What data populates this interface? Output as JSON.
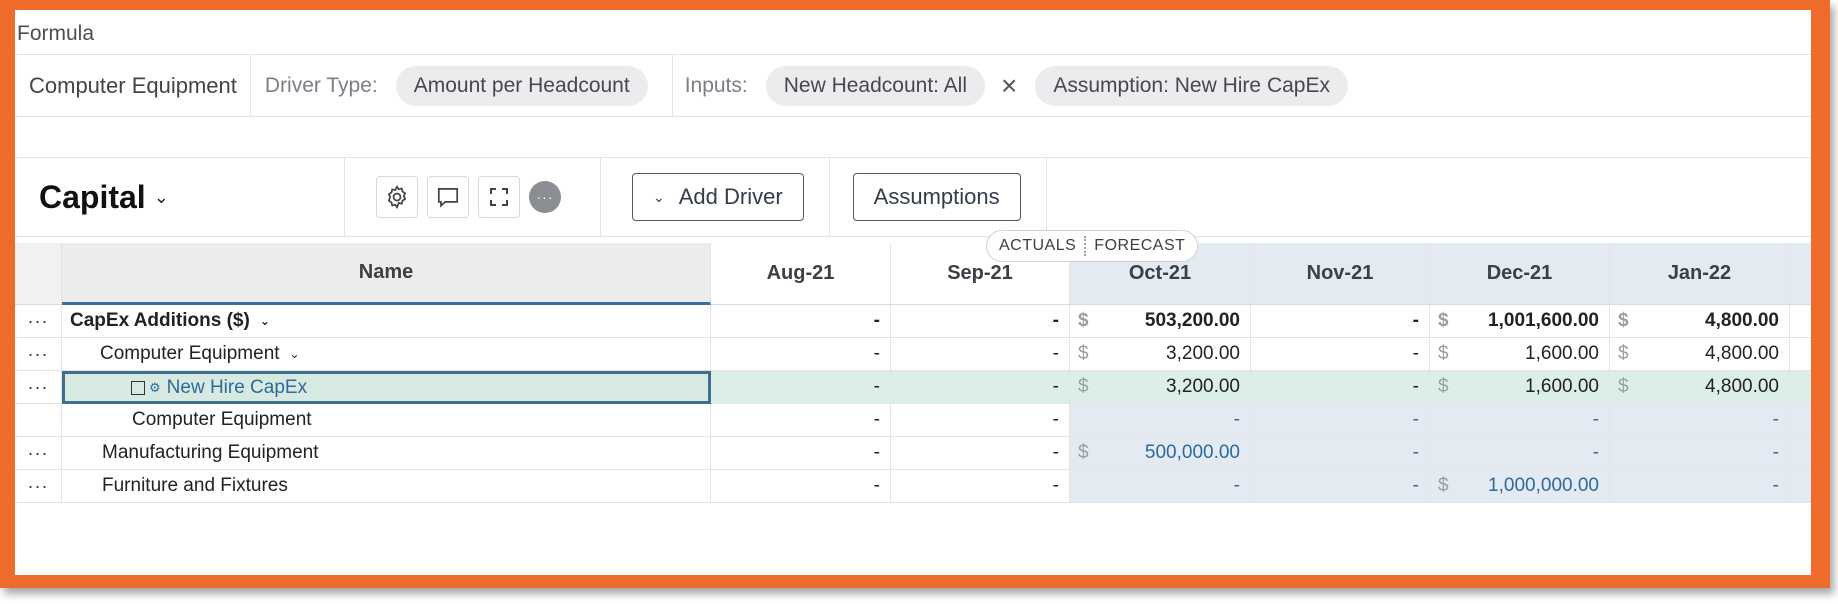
{
  "formula": {
    "title": "Formula",
    "name": "Computer Equipment",
    "driver_type_label": "Driver Type:",
    "driver_type_value": "Amount per Headcount",
    "inputs_label": "Inputs:",
    "inputs": [
      "New Headcount: All",
      "Assumption: New Hire CapEx"
    ],
    "remove_symbol": "×"
  },
  "toolbar": {
    "title": "Capital",
    "title_chevron": "⌄",
    "icons": [
      "gear-icon",
      "comment-icon",
      "expand-icon",
      "more-icon"
    ],
    "more_glyph": "···",
    "add_driver_label": "Add Driver",
    "add_driver_chevron": "⌄",
    "assumptions_label": "Assumptions"
  },
  "badge": {
    "actuals": "ACTUALS",
    "forecast": "FORECAST"
  },
  "grid": {
    "name_header": "Name",
    "months": [
      "Aug-21",
      "Sep-21",
      "Oct-21",
      "Nov-21",
      "Dec-21",
      "Jan-22"
    ],
    "menu_glyph": "···",
    "rows": [
      {
        "name": "CapEx Additions ($)",
        "chevron": "⌄",
        "values": [
          "-",
          "-",
          "503,200.00",
          "-",
          "1,001,600.00",
          "4,800.00"
        ],
        "dollar": [
          "",
          "",
          "$",
          "",
          "$",
          "$"
        ]
      },
      {
        "name": "Computer Equipment",
        "chevron": "⌄",
        "values": [
          "-",
          "-",
          "3,200.00",
          "-",
          "1,600.00",
          "4,800.00"
        ],
        "dollar": [
          "",
          "",
          "$",
          "",
          "$",
          "$"
        ]
      },
      {
        "name": "New Hire CapEx",
        "values": [
          "-",
          "-",
          "3,200.00",
          "-",
          "1,600.00",
          "4,800.00"
        ],
        "dollar": [
          "",
          "",
          "$",
          "",
          "$",
          "$"
        ]
      },
      {
        "name": "Computer Equipment",
        "values": [
          "-",
          "-",
          "-",
          "-",
          "-",
          "-"
        ],
        "dollar": [
          "",
          "",
          "",
          "",
          "",
          ""
        ]
      },
      {
        "name": "Manufacturing Equipment",
        "values": [
          "-",
          "-",
          "500,000.00",
          "-",
          "-",
          "-"
        ],
        "dollar": [
          "",
          "",
          "$",
          "",
          "",
          ""
        ]
      },
      {
        "name": "Furniture and Fixtures",
        "values": [
          "-",
          "-",
          "-",
          "-",
          "1,000,000.00",
          "-"
        ],
        "dollar": [
          "",
          "",
          "",
          "",
          "$",
          ""
        ]
      }
    ]
  }
}
